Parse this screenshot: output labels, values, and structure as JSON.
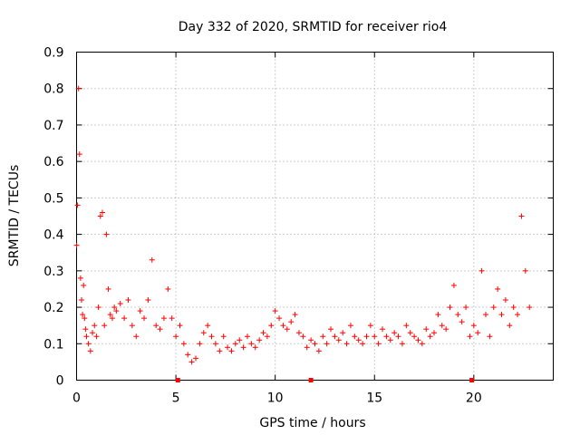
{
  "chart_data": {
    "type": "scatter",
    "title": "Day 332 of 2020, SRMTID for receiver rio4",
    "xlabel": "GPS time / hours",
    "ylabel": "SRMTID / TECUs",
    "xlim": [
      0,
      24
    ],
    "ylim": [
      0,
      0.9
    ],
    "xticks": [
      0,
      5,
      10,
      15,
      20
    ],
    "yticks": [
      0,
      0.1,
      0.2,
      0.3,
      0.4,
      0.5,
      0.6,
      0.7,
      0.8,
      0.9
    ],
    "xtick_labels": [
      "0",
      "5",
      "10",
      "15",
      "20"
    ],
    "ytick_labels": [
      "0",
      "0.1",
      "0.2",
      "0.3",
      "0.4",
      "0.5",
      "0.6",
      "0.7",
      "0.8",
      "0.9"
    ],
    "grid": true,
    "marker": "+",
    "series_color": "#ff0000",
    "gap_marker_x": [
      5.1,
      11.8,
      19.9
    ],
    "series": [
      {
        "name": "SRMTID",
        "x": [
          0.0,
          0.05,
          0.1,
          0.15,
          0.2,
          0.25,
          0.3,
          0.35,
          0.4,
          0.45,
          0.5,
          0.6,
          0.7,
          0.8,
          0.9,
          1.0,
          1.1,
          1.2,
          1.3,
          1.4,
          1.5,
          1.6,
          1.7,
          1.8,
          1.9,
          2.0,
          2.2,
          2.4,
          2.6,
          2.8,
          3.0,
          3.2,
          3.4,
          3.6,
          3.8,
          4.0,
          4.2,
          4.4,
          4.6,
          4.8,
          5.0,
          5.2,
          5.4,
          5.6,
          5.8,
          6.0,
          6.2,
          6.4,
          6.6,
          6.8,
          7.0,
          7.2,
          7.4,
          7.6,
          7.8,
          8.0,
          8.2,
          8.4,
          8.6,
          8.8,
          9.0,
          9.2,
          9.4,
          9.6,
          9.8,
          10.0,
          10.2,
          10.4,
          10.6,
          10.8,
          11.0,
          11.2,
          11.4,
          11.6,
          11.8,
          12.0,
          12.2,
          12.4,
          12.6,
          12.8,
          13.0,
          13.2,
          13.4,
          13.6,
          13.8,
          14.0,
          14.2,
          14.4,
          14.6,
          14.8,
          15.0,
          15.2,
          15.4,
          15.6,
          15.8,
          16.0,
          16.2,
          16.4,
          16.6,
          16.8,
          17.0,
          17.2,
          17.4,
          17.6,
          17.8,
          18.0,
          18.2,
          18.4,
          18.6,
          18.8,
          19.0,
          19.2,
          19.4,
          19.6,
          19.8,
          20.0,
          20.2,
          20.4,
          20.6,
          20.8,
          21.0,
          21.2,
          21.4,
          21.6,
          21.8,
          22.0,
          22.2,
          22.4,
          22.6,
          22.8
        ],
        "y": [
          0.37,
          0.48,
          0.8,
          0.62,
          0.28,
          0.22,
          0.18,
          0.26,
          0.17,
          0.14,
          0.12,
          0.1,
          0.08,
          0.13,
          0.15,
          0.12,
          0.2,
          0.45,
          0.46,
          0.15,
          0.4,
          0.25,
          0.18,
          0.17,
          0.2,
          0.19,
          0.21,
          0.17,
          0.22,
          0.15,
          0.12,
          0.19,
          0.17,
          0.22,
          0.33,
          0.15,
          0.14,
          0.17,
          0.25,
          0.17,
          0.12,
          0.15,
          0.1,
          0.07,
          0.05,
          0.06,
          0.1,
          0.13,
          0.15,
          0.12,
          0.1,
          0.08,
          0.12,
          0.09,
          0.08,
          0.1,
          0.11,
          0.09,
          0.12,
          0.1,
          0.09,
          0.11,
          0.13,
          0.12,
          0.15,
          0.19,
          0.17,
          0.15,
          0.14,
          0.16,
          0.18,
          0.13,
          0.12,
          0.09,
          0.11,
          0.1,
          0.08,
          0.12,
          0.1,
          0.14,
          0.12,
          0.11,
          0.13,
          0.1,
          0.15,
          0.12,
          0.11,
          0.1,
          0.12,
          0.15,
          0.12,
          0.1,
          0.14,
          0.12,
          0.11,
          0.13,
          0.12,
          0.1,
          0.15,
          0.13,
          0.12,
          0.11,
          0.1,
          0.14,
          0.12,
          0.13,
          0.18,
          0.15,
          0.14,
          0.2,
          0.26,
          0.18,
          0.16,
          0.2,
          0.12,
          0.15,
          0.13,
          0.3,
          0.18,
          0.12,
          0.2,
          0.25,
          0.18,
          0.22,
          0.15,
          0.2,
          0.18,
          0.45,
          0.3,
          0.2
        ]
      }
    ]
  }
}
